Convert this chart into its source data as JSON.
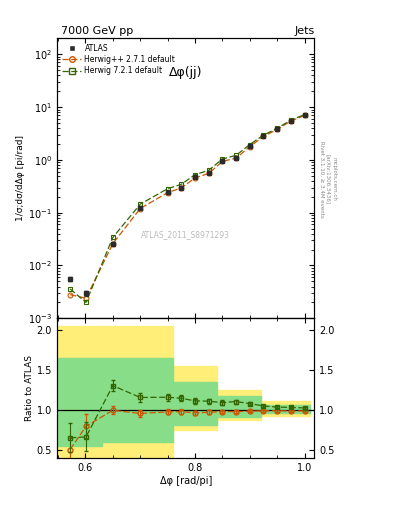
{
  "title_top": "7000 GeV pp",
  "title_right": "Jets",
  "plot_title": "Δφ(jj)",
  "watermark": "ATLAS_2011_S8971293",
  "right_label": "Rivet 3.1.10, ≥ 3.4M events",
  "right_label2": "[arXiv:1306.3436]",
  "mcplots_label": "mcplots.cern.ch",
  "xlabel": "Δφ [rad/pi]",
  "ylabel_main": "1/σ;dσ/dΔφ [pi/rad]",
  "ylabel_ratio": "Ratio to ATLAS",
  "atlas_x": [
    0.572,
    0.601,
    0.65,
    0.7,
    0.75,
    0.775,
    0.8,
    0.825,
    0.85,
    0.875,
    0.9,
    0.925,
    0.95,
    0.975,
    1.0
  ],
  "atlas_y": [
    0.0055,
    0.003,
    0.026,
    0.125,
    0.245,
    0.3,
    0.47,
    0.57,
    0.95,
    1.1,
    1.8,
    2.8,
    3.8,
    5.5,
    7.0
  ],
  "atlas_yerr": [
    0.0005,
    0.0003,
    0.002,
    0.008,
    0.015,
    0.018,
    0.025,
    0.03,
    0.05,
    0.06,
    0.09,
    0.13,
    0.18,
    0.25,
    0.32
  ],
  "herwig_pp_x": [
    0.572,
    0.601,
    0.65,
    0.7,
    0.75,
    0.775,
    0.8,
    0.825,
    0.85,
    0.875,
    0.9,
    0.925,
    0.95,
    0.975,
    1.0
  ],
  "herwig_pp_y": [
    0.0028,
    0.0024,
    0.026,
    0.12,
    0.24,
    0.295,
    0.455,
    0.555,
    0.935,
    1.08,
    1.78,
    2.78,
    3.78,
    5.45,
    6.95
  ],
  "herwig_72_x": [
    0.572,
    0.601,
    0.65,
    0.7,
    0.75,
    0.775,
    0.8,
    0.825,
    0.85,
    0.875,
    0.9,
    0.925,
    0.95,
    0.975,
    1.0
  ],
  "herwig_72_y": [
    0.0036,
    0.002,
    0.034,
    0.145,
    0.285,
    0.345,
    0.525,
    0.635,
    1.04,
    1.22,
    1.95,
    2.95,
    3.95,
    5.7,
    7.2
  ],
  "ratio_hpp_x": [
    0.572,
    0.601,
    0.65,
    0.7,
    0.75,
    0.775,
    0.8,
    0.825,
    0.85,
    0.875,
    0.9,
    0.925,
    0.95,
    0.975,
    1.0
  ],
  "ratio_hpp_y": [
    0.509,
    0.8,
    1.0,
    0.96,
    0.98,
    0.983,
    0.968,
    0.974,
    0.984,
    0.982,
    0.989,
    0.993,
    0.995,
    0.991,
    0.993
  ],
  "ratio_hpp_err": [
    0.15,
    0.15,
    0.05,
    0.04,
    0.033,
    0.03,
    0.028,
    0.025,
    0.022,
    0.02,
    0.017,
    0.015,
    0.013,
    0.011,
    0.01
  ],
  "ratio_h72_x": [
    0.572,
    0.601,
    0.65,
    0.7,
    0.75,
    0.775,
    0.8,
    0.825,
    0.85,
    0.875,
    0.9,
    0.925,
    0.95,
    0.975,
    1.0
  ],
  "ratio_h72_y": [
    0.655,
    0.667,
    1.308,
    1.16,
    1.163,
    1.15,
    1.117,
    1.114,
    1.095,
    1.109,
    1.083,
    1.054,
    1.039,
    1.036,
    1.029
  ],
  "ratio_h72_err": [
    0.18,
    0.18,
    0.07,
    0.055,
    0.045,
    0.04,
    0.036,
    0.032,
    0.028,
    0.025,
    0.022,
    0.018,
    0.015,
    0.013,
    0.011
  ],
  "yb_edges": [
    0.55,
    0.63,
    0.76,
    0.84,
    0.92,
    1.01
  ],
  "yb_lo": [
    0.4,
    0.4,
    0.75,
    0.88,
    0.93,
    0.93
  ],
  "yb_hi": [
    2.05,
    2.05,
    1.55,
    1.25,
    1.12,
    1.12
  ],
  "gb_edges": [
    0.55,
    0.63,
    0.76,
    0.84,
    0.92,
    1.01
  ],
  "gb_lo": [
    0.55,
    0.6,
    0.82,
    0.92,
    0.96,
    0.96
  ],
  "gb_hi": [
    1.65,
    1.65,
    1.35,
    1.18,
    1.07,
    1.07
  ],
  "atlas_color": "#2b2b2b",
  "herwig_pp_color": "#cc5500",
  "herwig_72_color": "#336600",
  "yellow_color": "#ffee77",
  "green_color": "#88dd88",
  "ylim_main": [
    0.001,
    200
  ],
  "ylim_ratio": [
    0.4,
    2.15
  ],
  "xlim": [
    0.548,
    1.018
  ]
}
